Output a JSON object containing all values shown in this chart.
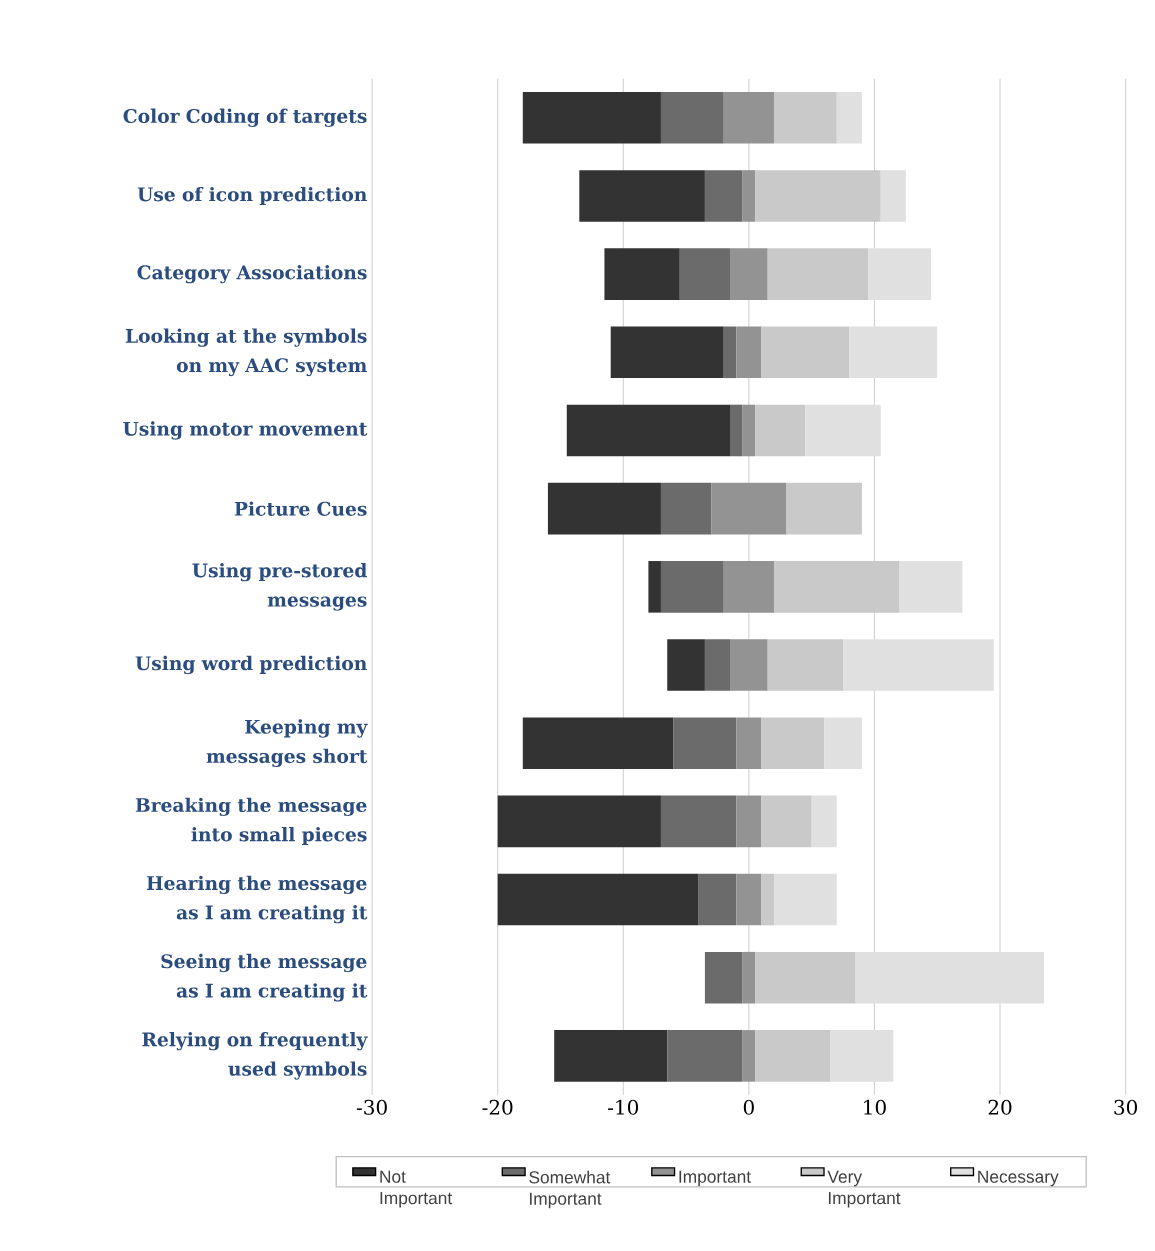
{
  "chart_data": {
    "type": "bar",
    "orientation": "horizontal",
    "categories": [
      "Color Coding of targets",
      "Use of icon prediction",
      "Category Associations",
      "Looking at the symbols on my AAC system",
      "Using motor movement",
      "Picture Cues",
      "Using pre-stored messages",
      "Using word prediction",
      "Keeping my messages short",
      "Breaking the message into small pieces",
      "Hearing the message as I am creating it",
      "Seeing the message as I am creating it",
      "Relying on frequently used symbols"
    ],
    "series": [
      {
        "name": "Not Important",
        "color": "#333333",
        "base": [
          -18,
          -13.5,
          -11.5,
          -11,
          -14.5,
          -16,
          -8,
          -6.5,
          -18,
          -20,
          -20,
          null,
          -15.5
        ],
        "values": [
          11,
          10,
          6,
          9,
          13,
          9,
          1,
          3,
          12,
          13,
          16,
          null,
          9
        ]
      },
      {
        "name": "Somewhat Important",
        "color": "#6b6b6b",
        "base": [
          -7,
          -3.5,
          -5.5,
          -2,
          -1.5,
          -7,
          -7,
          -3.5,
          -6,
          -7,
          -4,
          -3.5,
          -6.5
        ],
        "values": [
          5,
          3,
          4,
          1,
          1,
          4,
          5,
          2,
          5,
          6,
          3,
          3,
          6
        ]
      },
      {
        "name": "Important",
        "color": "#939393",
        "base": [
          -2,
          -0.5,
          -1.5,
          -1,
          -0.5,
          -3,
          -2,
          -1.5,
          -1,
          -1,
          -1,
          -0.5,
          -0.5
        ],
        "values": [
          4,
          1,
          3,
          2,
          1,
          6,
          4,
          3,
          2,
          2,
          2,
          1,
          1
        ]
      },
      {
        "name": "Very Important",
        "color": "#c9c9c9",
        "base": [
          2,
          0.5,
          1.5,
          1,
          0.5,
          3,
          2,
          1.5,
          1,
          1,
          1,
          0.5,
          0.5
        ],
        "values": [
          5,
          10,
          8,
          7,
          4,
          6,
          10,
          6,
          5,
          4,
          1,
          8,
          6
        ]
      },
      {
        "name": "Necessary",
        "color": "#e0e0e0",
        "base": [
          7,
          10.5,
          9.5,
          8,
          4.5,
          null,
          12,
          7.5,
          6,
          5,
          2,
          8.5,
          6.5
        ],
        "values": [
          2,
          2,
          5,
          7,
          6,
          null,
          5,
          12,
          3,
          2,
          5,
          15,
          5
        ]
      }
    ],
    "xlim": [
      -30,
      30
    ],
    "xticks": [
      -30,
      -20,
      -10,
      0,
      10,
      20,
      30
    ],
    "grid": "x",
    "legend": "bottom"
  }
}
